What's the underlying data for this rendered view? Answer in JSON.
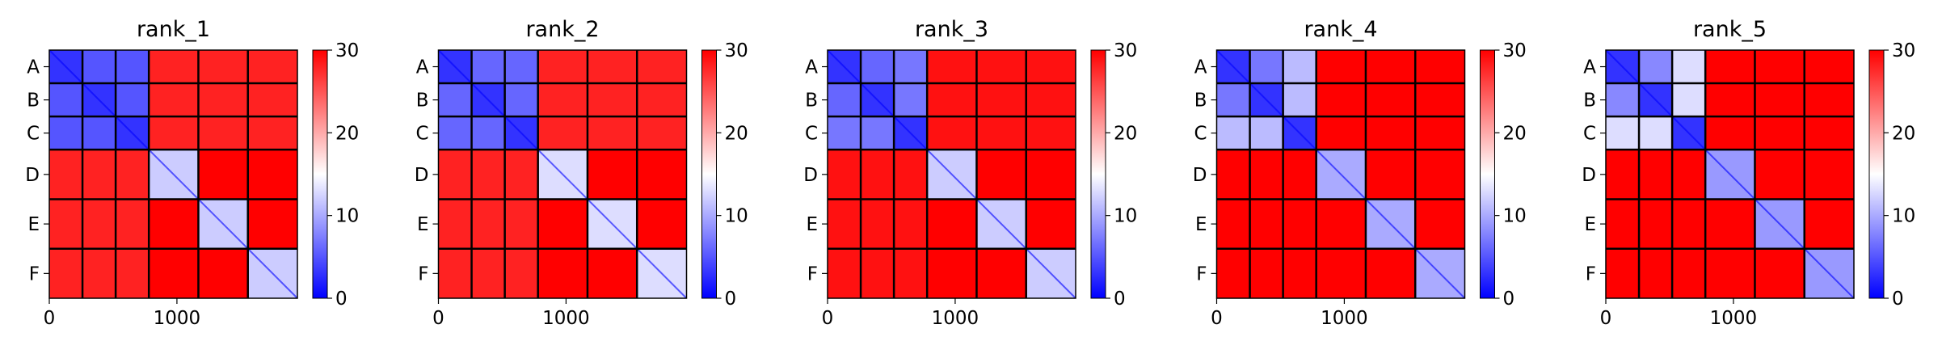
{
  "chart_data": [
    {
      "type": "heatmap",
      "title": "rank_1",
      "row_labels": [
        "A",
        "B",
        "C",
        "D",
        "E",
        "F"
      ],
      "x_ticks": [
        0,
        1000
      ],
      "xlim": [
        0,
        1944
      ],
      "colorbar": {
        "ticks": [
          0,
          10,
          20,
          30
        ],
        "range": [
          0,
          30
        ],
        "colormap": "bwr"
      },
      "block_sizes": [
        260,
        260,
        260,
        388,
        388,
        388
      ],
      "block_values": [
        [
          3,
          5,
          5,
          28,
          28,
          28
        ],
        [
          5,
          3,
          5,
          28,
          28,
          28
        ],
        [
          5,
          5,
          3,
          28,
          28,
          28
        ],
        [
          28,
          28,
          28,
          12,
          30,
          30
        ],
        [
          28,
          28,
          28,
          30,
          12,
          30
        ],
        [
          28,
          28,
          28,
          30,
          30,
          12
        ]
      ]
    },
    {
      "type": "heatmap",
      "title": "rank_2",
      "row_labels": [
        "A",
        "B",
        "C",
        "D",
        "E",
        "F"
      ],
      "x_ticks": [
        0,
        1000
      ],
      "xlim": [
        0,
        1944
      ],
      "colorbar": {
        "ticks": [
          0,
          10,
          20,
          30
        ],
        "range": [
          0,
          30
        ],
        "colormap": "bwr"
      },
      "block_sizes": [
        260,
        260,
        260,
        388,
        388,
        388
      ],
      "block_values": [
        [
          3,
          6,
          6,
          28,
          28,
          28
        ],
        [
          6,
          3,
          6,
          28,
          28,
          28
        ],
        [
          6,
          6,
          3,
          28,
          28,
          28
        ],
        [
          28,
          28,
          28,
          13,
          30,
          30
        ],
        [
          28,
          28,
          28,
          30,
          13,
          30
        ],
        [
          28,
          28,
          28,
          30,
          30,
          13
        ]
      ]
    },
    {
      "type": "heatmap",
      "title": "rank_3",
      "row_labels": [
        "A",
        "B",
        "C",
        "D",
        "E",
        "F"
      ],
      "x_ticks": [
        0,
        1000
      ],
      "xlim": [
        0,
        1944
      ],
      "colorbar": {
        "ticks": [
          0,
          10,
          20,
          30
        ],
        "range": [
          0,
          30
        ],
        "colormap": "bwr"
      },
      "block_sizes": [
        260,
        260,
        260,
        388,
        388,
        388
      ],
      "block_values": [
        [
          3,
          6,
          7,
          29,
          29,
          29
        ],
        [
          6,
          3,
          7,
          29,
          29,
          29
        ],
        [
          7,
          7,
          3,
          29,
          29,
          29
        ],
        [
          29,
          29,
          29,
          12,
          30,
          30
        ],
        [
          29,
          29,
          29,
          30,
          12,
          30
        ],
        [
          29,
          29,
          29,
          30,
          30,
          12
        ]
      ]
    },
    {
      "type": "heatmap",
      "title": "rank_4",
      "row_labels": [
        "A",
        "B",
        "C",
        "D",
        "E",
        "F"
      ],
      "x_ticks": [
        0,
        1000
      ],
      "xlim": [
        0,
        1944
      ],
      "colorbar": {
        "ticks": [
          0,
          10,
          20,
          30
        ],
        "range": [
          0,
          30
        ],
        "colormap": "bwr"
      },
      "block_sizes": [
        260,
        260,
        260,
        388,
        388,
        388
      ],
      "block_values": [
        [
          3,
          7,
          11,
          30,
          30,
          30
        ],
        [
          7,
          3,
          11,
          30,
          30,
          30
        ],
        [
          11,
          11,
          3,
          30,
          30,
          30
        ],
        [
          30,
          30,
          30,
          10,
          30,
          30
        ],
        [
          30,
          30,
          30,
          30,
          10,
          30
        ],
        [
          30,
          30,
          30,
          30,
          30,
          10
        ]
      ]
    },
    {
      "type": "heatmap",
      "title": "rank_5",
      "row_labels": [
        "A",
        "B",
        "C",
        "D",
        "E",
        "F"
      ],
      "x_ticks": [
        0,
        1000
      ],
      "xlim": [
        0,
        1944
      ],
      "colorbar": {
        "ticks": [
          0,
          10,
          20,
          30
        ],
        "range": [
          0,
          30
        ],
        "colormap": "bwr"
      },
      "block_sizes": [
        260,
        260,
        260,
        388,
        388,
        388
      ],
      "block_values": [
        [
          3,
          8,
          13,
          30,
          30,
          30
        ],
        [
          8,
          3,
          13,
          30,
          30,
          30
        ],
        [
          13,
          13,
          3,
          30,
          30,
          30
        ],
        [
          30,
          30,
          30,
          9,
          30,
          30
        ],
        [
          30,
          30,
          30,
          30,
          9,
          30
        ],
        [
          30,
          30,
          30,
          30,
          30,
          9
        ]
      ]
    }
  ]
}
